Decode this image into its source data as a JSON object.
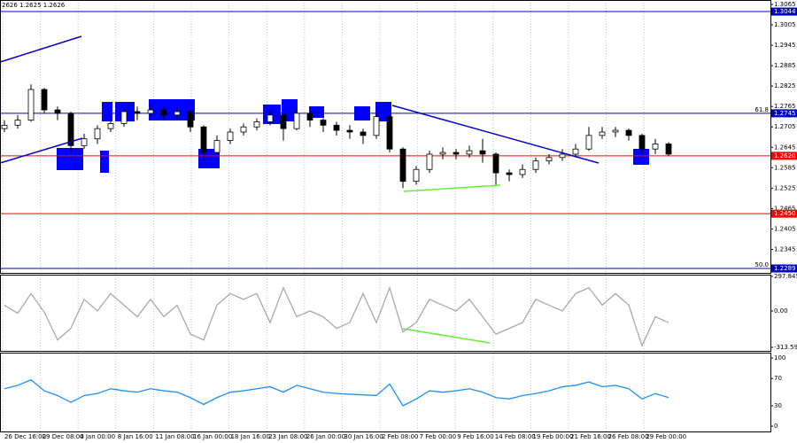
{
  "chart_data": [
    {
      "type": "candlestick",
      "title": "2626 1.2625 1.2626",
      "open": [
        1.27,
        1.271,
        1.2725,
        1.2815,
        1.2755,
        1.2745,
        1.265,
        1.267,
        1.27,
        1.2715,
        1.275,
        1.2745,
        1.2755,
        1.274,
        1.275,
        1.2705,
        1.263,
        1.2665,
        1.269,
        1.2705,
        1.272,
        1.274,
        1.27,
        1.2745,
        1.2725,
        1.271,
        1.2695,
        1.269,
        1.268,
        1.2735,
        1.264,
        1.2545,
        1.258,
        1.2625,
        1.263,
        1.2625,
        1.2635,
        1.2625,
        1.257,
        1.2565,
        1.258,
        1.2605,
        1.2615,
        1.2625,
        1.264,
        1.268,
        1.269,
        1.2695,
        1.268,
        1.264,
        1.2655
      ],
      "high": [
        1.2725,
        1.274,
        1.283,
        1.282,
        1.2765,
        1.275,
        1.2685,
        1.271,
        1.2735,
        1.276,
        1.2765,
        1.277,
        1.2765,
        1.2765,
        1.2755,
        1.271,
        1.268,
        1.27,
        1.2715,
        1.273,
        1.2755,
        1.2745,
        1.2755,
        1.275,
        1.273,
        1.272,
        1.271,
        1.27,
        1.2745,
        1.274,
        1.2645,
        1.259,
        1.2635,
        1.2645,
        1.264,
        1.265,
        1.267,
        1.263,
        1.258,
        1.2595,
        1.2615,
        1.2625,
        1.264,
        1.2655,
        1.2705,
        1.2705,
        1.2705,
        1.27,
        1.2685,
        1.267,
        1.266
      ],
      "low": [
        1.269,
        1.27,
        1.272,
        1.2745,
        1.2725,
        1.263,
        1.264,
        1.2655,
        1.269,
        1.2705,
        1.2725,
        1.2735,
        1.2725,
        1.273,
        1.269,
        1.2605,
        1.2625,
        1.2655,
        1.268,
        1.2695,
        1.271,
        1.2665,
        1.2695,
        1.2705,
        1.269,
        1.268,
        1.267,
        1.2655,
        1.267,
        1.263,
        1.2525,
        1.2535,
        1.257,
        1.261,
        1.261,
        1.2615,
        1.26,
        1.2535,
        1.2545,
        1.2555,
        1.257,
        1.2595,
        1.2605,
        1.2615,
        1.2635,
        1.267,
        1.2675,
        1.2665,
        1.262,
        1.2625,
        1.262
      ],
      "close": [
        1.271,
        1.2725,
        1.2815,
        1.2755,
        1.2745,
        1.265,
        1.267,
        1.27,
        1.2715,
        1.275,
        1.2745,
        1.2755,
        1.274,
        1.275,
        1.2705,
        1.263,
        1.2665,
        1.269,
        1.2705,
        1.272,
        1.274,
        1.27,
        1.2745,
        1.2725,
        1.271,
        1.2695,
        1.269,
        1.268,
        1.2735,
        1.264,
        1.2545,
        1.258,
        1.2625,
        1.263,
        1.2625,
        1.2635,
        1.2625,
        1.257,
        1.2565,
        1.258,
        1.2605,
        1.2615,
        1.2625,
        1.264,
        1.268,
        1.269,
        1.2695,
        1.268,
        1.264,
        1.2655,
        1.2625
      ],
      "bull_color": "#ffffff",
      "bear_color": "#000000",
      "ylim": [
        1.2276,
        1.3078
      ],
      "yticks": [
        1.3065,
        1.3005,
        1.2945,
        1.2885,
        1.2825,
        1.2765,
        1.2705,
        1.2645,
        1.2585,
        1.2525,
        1.2465,
        1.2405,
        1.2345
      ],
      "levels": [
        {
          "value": 1.3044,
          "color": "#0000cd"
        },
        {
          "value": 1.2745,
          "color": "#0000cd",
          "name": "61.8"
        },
        {
          "value": 1.262,
          "label": "1.2620",
          "color": "#ff0000"
        },
        {
          "value": 1.245,
          "label": "1.2450",
          "color": "#ff0000"
        },
        {
          "value": 1.2289,
          "color": "#0000cd",
          "name": "50.0"
        }
      ],
      "x_labels": [
        "26 Dec 16:00",
        "29 Dec 08:00",
        "4 Jan 00:00",
        "8 Jan 16:00",
        "11 Jan 08:00",
        "16 Jan 00:00",
        "18 Jan 16:00",
        "23 Jan 08:00",
        "26 Jan 00:00",
        "30 Jan 16:00",
        "2 Feb 08:00",
        "7 Feb 00:00",
        "9 Feb 16:00",
        "14 Feb 08:00",
        "19 Feb 00:00",
        "21 Feb 16:00",
        "26 Feb 08:00",
        "29 Feb 00:00"
      ]
    },
    {
      "type": "line",
      "series": [
        {
          "color": "#a9a9a9",
          "values": [
            50,
            -20,
            150,
            -10,
            -250,
            -150,
            100,
            0,
            150,
            50,
            -50,
            100,
            -50,
            50,
            -200,
            -250,
            50,
            150,
            100,
            150,
            -100,
            200,
            -50,
            0,
            -50,
            -150,
            -100,
            150,
            -100,
            200,
            -180,
            -100,
            100,
            50,
            0,
            100,
            -50,
            -200,
            -150,
            -100,
            100,
            50,
            0,
            150,
            200,
            50,
            150,
            50,
            -300,
            -50,
            -100
          ]
        }
      ],
      "ylim": [
        -344,
        313
      ],
      "yticks": [
        297.8455,
        {
          "value": 0,
          "label": "0.00"
        },
        -313.5916
      ]
    },
    {
      "type": "line",
      "series": [
        {
          "color": "#1e90ff",
          "values": [
            55,
            60,
            68,
            52,
            45,
            35,
            45,
            48,
            55,
            52,
            50,
            55,
            52,
            50,
            42,
            32,
            42,
            50,
            52,
            55,
            58,
            50,
            60,
            55,
            50,
            48,
            47,
            46,
            45,
            62,
            30,
            40,
            52,
            50,
            52,
            55,
            50,
            42,
            40,
            45,
            48,
            52,
            58,
            60,
            65,
            58,
            60,
            55,
            40,
            48,
            42
          ]
        }
      ],
      "ylim": [
        -9,
        108
      ],
      "yticks": [
        100,
        70,
        30,
        0
      ]
    }
  ]
}
